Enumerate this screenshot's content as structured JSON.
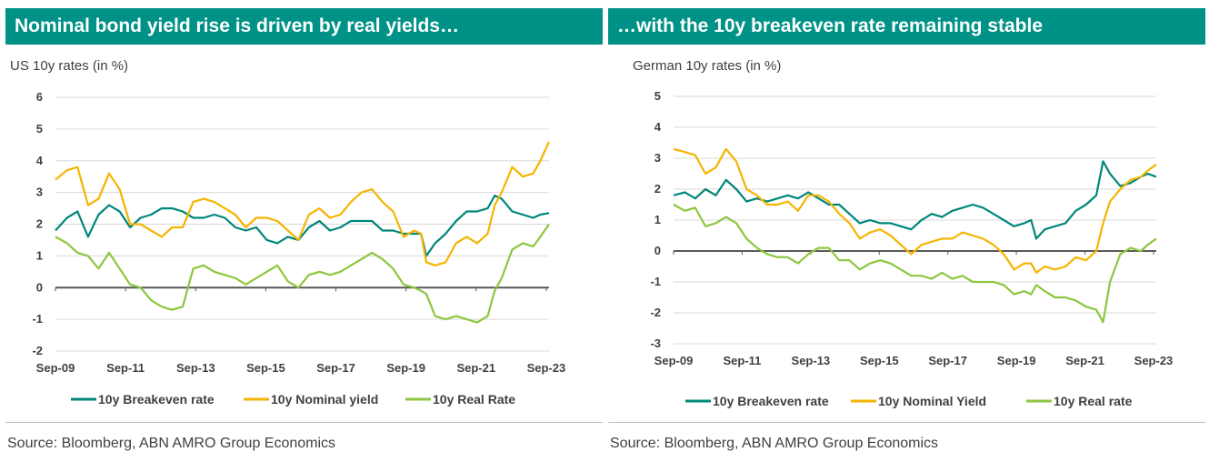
{
  "colors": {
    "header": "#009286",
    "breakeven": "#00877a",
    "nominal": "#f5b400",
    "real": "#8dc63f",
    "axis": "#595959",
    "grid": "#d9d9d9"
  },
  "chart_data": [
    {
      "type": "line",
      "title": "Nominal bond yield rise is driven by real yields…",
      "subtitle": "US 10y rates (in %)",
      "source": "Source: Bloomberg, ABN AMRO Group Economics",
      "ylim": [
        -2,
        6
      ],
      "yticks": [
        -2,
        -1,
        0,
        1,
        2,
        3,
        4,
        5,
        6
      ],
      "xlim": [
        2009.67,
        2023.75
      ],
      "xticks": [
        {
          "label": "Sep-09",
          "x": 2009.67
        },
        {
          "label": "Sep-11",
          "x": 2011.67
        },
        {
          "label": "Sep-13",
          "x": 2013.67
        },
        {
          "label": "Sep-15",
          "x": 2015.67
        },
        {
          "label": "Sep-17",
          "x": 2017.67
        },
        {
          "label": "Sep-19",
          "x": 2019.67
        },
        {
          "label": "Sep-21",
          "x": 2021.67
        },
        {
          "label": "Sep-23",
          "x": 2023.67
        }
      ],
      "grid": true,
      "legend_position": "bottom",
      "series": [
        {
          "name": "10y Breakeven rate",
          "color_key": "breakeven",
          "x": [
            2009.67,
            2010.0,
            2010.3,
            2010.6,
            2010.9,
            2011.2,
            2011.5,
            2011.8,
            2012.1,
            2012.4,
            2012.7,
            2013.0,
            2013.3,
            2013.6,
            2013.9,
            2014.2,
            2014.5,
            2014.8,
            2015.1,
            2015.4,
            2015.7,
            2016.0,
            2016.3,
            2016.6,
            2016.9,
            2017.2,
            2017.5,
            2017.8,
            2018.1,
            2018.4,
            2018.7,
            2019.0,
            2019.3,
            2019.6,
            2019.9,
            2020.1,
            2020.25,
            2020.5,
            2020.8,
            2021.1,
            2021.4,
            2021.7,
            2022.0,
            2022.2,
            2022.4,
            2022.7,
            2023.0,
            2023.3,
            2023.5,
            2023.75
          ],
          "y": [
            1.8,
            2.2,
            2.4,
            1.6,
            2.3,
            2.6,
            2.4,
            1.9,
            2.2,
            2.3,
            2.5,
            2.5,
            2.4,
            2.2,
            2.2,
            2.3,
            2.2,
            1.9,
            1.8,
            1.9,
            1.5,
            1.4,
            1.6,
            1.5,
            1.9,
            2.1,
            1.8,
            1.9,
            2.1,
            2.1,
            2.1,
            1.8,
            1.8,
            1.7,
            1.7,
            1.7,
            1.0,
            1.4,
            1.7,
            2.1,
            2.4,
            2.4,
            2.5,
            2.9,
            2.8,
            2.4,
            2.3,
            2.2,
            2.3,
            2.35
          ]
        },
        {
          "name": "10y Nominal yield",
          "color_key": "nominal",
          "x": [
            2009.67,
            2010.0,
            2010.3,
            2010.6,
            2010.9,
            2011.2,
            2011.5,
            2011.8,
            2012.1,
            2012.4,
            2012.7,
            2013.0,
            2013.3,
            2013.6,
            2013.9,
            2014.2,
            2014.5,
            2014.8,
            2015.1,
            2015.4,
            2015.7,
            2016.0,
            2016.3,
            2016.6,
            2016.9,
            2017.2,
            2017.5,
            2017.8,
            2018.1,
            2018.4,
            2018.7,
            2019.0,
            2019.3,
            2019.6,
            2019.9,
            2020.1,
            2020.25,
            2020.5,
            2020.8,
            2021.1,
            2021.4,
            2021.7,
            2022.0,
            2022.2,
            2022.4,
            2022.7,
            2023.0,
            2023.3,
            2023.5,
            2023.75
          ],
          "y": [
            3.4,
            3.7,
            3.8,
            2.6,
            2.8,
            3.6,
            3.1,
            2.0,
            2.0,
            1.8,
            1.6,
            1.9,
            1.9,
            2.7,
            2.8,
            2.7,
            2.5,
            2.3,
            1.9,
            2.2,
            2.2,
            2.1,
            1.8,
            1.5,
            2.3,
            2.5,
            2.2,
            2.3,
            2.7,
            3.0,
            3.1,
            2.7,
            2.4,
            1.6,
            1.8,
            1.7,
            0.8,
            0.7,
            0.8,
            1.4,
            1.6,
            1.4,
            1.7,
            2.6,
            3.0,
            3.8,
            3.5,
            3.6,
            4.0,
            4.6
          ]
        },
        {
          "name": "10y Real Rate",
          "color_key": "real",
          "x": [
            2009.67,
            2010.0,
            2010.3,
            2010.6,
            2010.9,
            2011.2,
            2011.5,
            2011.8,
            2012.1,
            2012.4,
            2012.7,
            2013.0,
            2013.3,
            2013.6,
            2013.9,
            2014.2,
            2014.5,
            2014.8,
            2015.1,
            2015.4,
            2015.7,
            2016.0,
            2016.3,
            2016.6,
            2016.9,
            2017.2,
            2017.5,
            2017.8,
            2018.1,
            2018.4,
            2018.7,
            2019.0,
            2019.3,
            2019.6,
            2019.9,
            2020.1,
            2020.25,
            2020.5,
            2020.8,
            2021.1,
            2021.4,
            2021.7,
            2022.0,
            2022.2,
            2022.4,
            2022.7,
            2023.0,
            2023.3,
            2023.5,
            2023.75
          ],
          "y": [
            1.6,
            1.4,
            1.1,
            1.0,
            0.6,
            1.1,
            0.6,
            0.1,
            0.0,
            -0.4,
            -0.6,
            -0.7,
            -0.6,
            0.6,
            0.7,
            0.5,
            0.4,
            0.3,
            0.1,
            0.3,
            0.5,
            0.7,
            0.2,
            0.0,
            0.4,
            0.5,
            0.4,
            0.5,
            0.7,
            0.9,
            1.1,
            0.9,
            0.6,
            0.1,
            0.0,
            -0.1,
            -0.2,
            -0.9,
            -1.0,
            -0.9,
            -1.0,
            -1.1,
            -0.9,
            -0.1,
            0.3,
            1.2,
            1.4,
            1.3,
            1.6,
            2.0
          ]
        }
      ]
    },
    {
      "type": "line",
      "title": "…with the 10y breakeven rate remaining stable",
      "subtitle": "German 10y rates (in %)",
      "source": "Source: Bloomberg, ABN AMRO Group Economics",
      "ylim": [
        -3,
        5
      ],
      "yticks": [
        -3,
        -2,
        -1,
        0,
        1,
        2,
        3,
        4,
        5
      ],
      "xlim": [
        2009.67,
        2023.75
      ],
      "xticks": [
        {
          "label": "Sep-09",
          "x": 2009.67
        },
        {
          "label": "Sep-11",
          "x": 2011.67
        },
        {
          "label": "Sep-13",
          "x": 2013.67
        },
        {
          "label": "Sep-15",
          "x": 2015.67
        },
        {
          "label": "Sep-17",
          "x": 2017.67
        },
        {
          "label": "Sep-19",
          "x": 2019.67
        },
        {
          "label": "Sep-21",
          "x": 2021.67
        },
        {
          "label": "Sep-23",
          "x": 2023.67
        }
      ],
      "grid": true,
      "legend_position": "bottom",
      "series": [
        {
          "name": "10y Breakeven rate",
          "color_key": "breakeven",
          "x": [
            2009.67,
            2010.0,
            2010.3,
            2010.6,
            2010.9,
            2011.2,
            2011.5,
            2011.8,
            2012.1,
            2012.4,
            2012.7,
            2013.0,
            2013.3,
            2013.6,
            2013.9,
            2014.2,
            2014.5,
            2014.8,
            2015.1,
            2015.4,
            2015.7,
            2016.0,
            2016.3,
            2016.6,
            2016.9,
            2017.2,
            2017.5,
            2017.8,
            2018.1,
            2018.4,
            2018.7,
            2019.0,
            2019.3,
            2019.6,
            2019.9,
            2020.1,
            2020.25,
            2020.5,
            2020.8,
            2021.1,
            2021.4,
            2021.7,
            2022.0,
            2022.2,
            2022.4,
            2022.7,
            2023.0,
            2023.3,
            2023.5,
            2023.75
          ],
          "y": [
            1.8,
            1.9,
            1.7,
            2.0,
            1.8,
            2.3,
            2.0,
            1.6,
            1.7,
            1.6,
            1.7,
            1.8,
            1.7,
            1.9,
            1.7,
            1.5,
            1.5,
            1.2,
            0.9,
            1.0,
            0.9,
            0.9,
            0.8,
            0.7,
            1.0,
            1.2,
            1.1,
            1.3,
            1.4,
            1.5,
            1.4,
            1.2,
            1.0,
            0.8,
            0.9,
            1.0,
            0.4,
            0.7,
            0.8,
            0.9,
            1.3,
            1.5,
            1.8,
            2.9,
            2.5,
            2.1,
            2.2,
            2.4,
            2.5,
            2.4
          ]
        },
        {
          "name": "10y Nominal Yield",
          "color_key": "nominal",
          "x": [
            2009.67,
            2010.0,
            2010.3,
            2010.6,
            2010.9,
            2011.2,
            2011.5,
            2011.8,
            2012.1,
            2012.4,
            2012.7,
            2013.0,
            2013.3,
            2013.6,
            2013.9,
            2014.2,
            2014.5,
            2014.8,
            2015.1,
            2015.4,
            2015.7,
            2016.0,
            2016.3,
            2016.6,
            2016.9,
            2017.2,
            2017.5,
            2017.8,
            2018.1,
            2018.4,
            2018.7,
            2019.0,
            2019.3,
            2019.6,
            2019.9,
            2020.1,
            2020.25,
            2020.5,
            2020.8,
            2021.1,
            2021.4,
            2021.7,
            2022.0,
            2022.2,
            2022.4,
            2022.7,
            2023.0,
            2023.3,
            2023.5,
            2023.75
          ],
          "y": [
            3.3,
            3.2,
            3.1,
            2.5,
            2.7,
            3.3,
            2.9,
            2.0,
            1.8,
            1.5,
            1.5,
            1.6,
            1.3,
            1.8,
            1.8,
            1.6,
            1.2,
            0.9,
            0.4,
            0.6,
            0.7,
            0.5,
            0.2,
            -0.1,
            0.2,
            0.3,
            0.4,
            0.4,
            0.6,
            0.5,
            0.4,
            0.2,
            -0.1,
            -0.6,
            -0.4,
            -0.4,
            -0.7,
            -0.5,
            -0.6,
            -0.5,
            -0.2,
            -0.3,
            0.0,
            0.9,
            1.6,
            2.0,
            2.3,
            2.4,
            2.6,
            2.8
          ]
        },
        {
          "name": "10y Real rate",
          "color_key": "real",
          "x": [
            2009.67,
            2010.0,
            2010.3,
            2010.6,
            2010.9,
            2011.2,
            2011.5,
            2011.8,
            2012.1,
            2012.4,
            2012.7,
            2013.0,
            2013.3,
            2013.6,
            2013.9,
            2014.2,
            2014.5,
            2014.8,
            2015.1,
            2015.4,
            2015.7,
            2016.0,
            2016.3,
            2016.6,
            2016.9,
            2017.2,
            2017.5,
            2017.8,
            2018.1,
            2018.4,
            2018.7,
            2019.0,
            2019.3,
            2019.6,
            2019.9,
            2020.1,
            2020.25,
            2020.5,
            2020.8,
            2021.1,
            2021.4,
            2021.7,
            2022.0,
            2022.2,
            2022.4,
            2022.7,
            2023.0,
            2023.3,
            2023.5,
            2023.75
          ],
          "y": [
            1.5,
            1.3,
            1.4,
            0.8,
            0.9,
            1.1,
            0.9,
            0.4,
            0.1,
            -0.1,
            -0.2,
            -0.2,
            -0.4,
            -0.1,
            0.1,
            0.1,
            -0.3,
            -0.3,
            -0.6,
            -0.4,
            -0.3,
            -0.4,
            -0.6,
            -0.8,
            -0.8,
            -0.9,
            -0.7,
            -0.9,
            -0.8,
            -1.0,
            -1.0,
            -1.0,
            -1.1,
            -1.4,
            -1.3,
            -1.4,
            -1.1,
            -1.3,
            -1.5,
            -1.5,
            -1.6,
            -1.8,
            -1.9,
            -2.3,
            -1.0,
            -0.1,
            0.1,
            0.0,
            0.2,
            0.4
          ]
        }
      ]
    }
  ]
}
